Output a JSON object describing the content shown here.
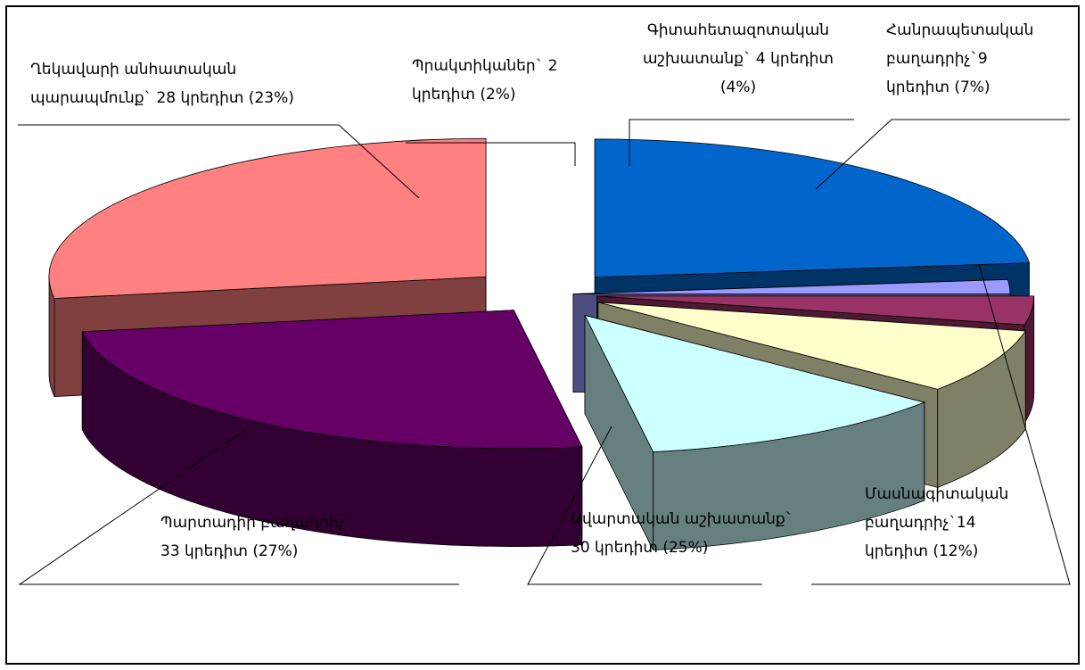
{
  "chart_data": {
    "type": "pie",
    "style": "3d-exploded",
    "slices": [
      {
        "label_lines": [
          "Ղեկավարի անհատական",
          "պարապմունք` 28 կրեդիտ (23%)"
        ],
        "value": 28,
        "percent": 23,
        "top": "#0066cc",
        "side": "#003366"
      },
      {
        "label_lines": [
          "Պրակտիկաներ` 2",
          "կրեդիտ (2%)"
        ],
        "value": 2,
        "percent": 2,
        "top": "#9999ff",
        "side": "#4d4d80"
      },
      {
        "label_lines": [
          "Գիտահետազոտական",
          "աշխատանք` 4 կրեդիտ",
          "(4%)"
        ],
        "value": 4,
        "percent": 4,
        "top": "#993366",
        "side": "#4d1a33"
      },
      {
        "label_lines": [
          "Հանրապետական",
          "բաղադրիչ`9",
          "կրեդիտ (7%)"
        ],
        "value": 9,
        "percent": 7,
        "top": "#ffffcc",
        "side": "#808066"
      },
      {
        "label_lines": [
          "Մասնագիտական",
          "բաղադրիչ`14",
          "կրեդիտ (12%)"
        ],
        "value": 14,
        "percent": 12,
        "top": "#ccffff",
        "side": "#668080"
      },
      {
        "label_lines": [
          "Ավարտական աշխատանք`",
          "30 կրեդիտ (25%)"
        ],
        "value": 30,
        "percent": 25,
        "top": "#660066",
        "side": "#330033"
      },
      {
        "label_lines": [
          "Պարտադիր բաղադրիչ`",
          "33 կրեդիտ (27%)"
        ],
        "value": 33,
        "percent": 27,
        "top": "#ff8080",
        "side": "#804040"
      }
    ]
  }
}
